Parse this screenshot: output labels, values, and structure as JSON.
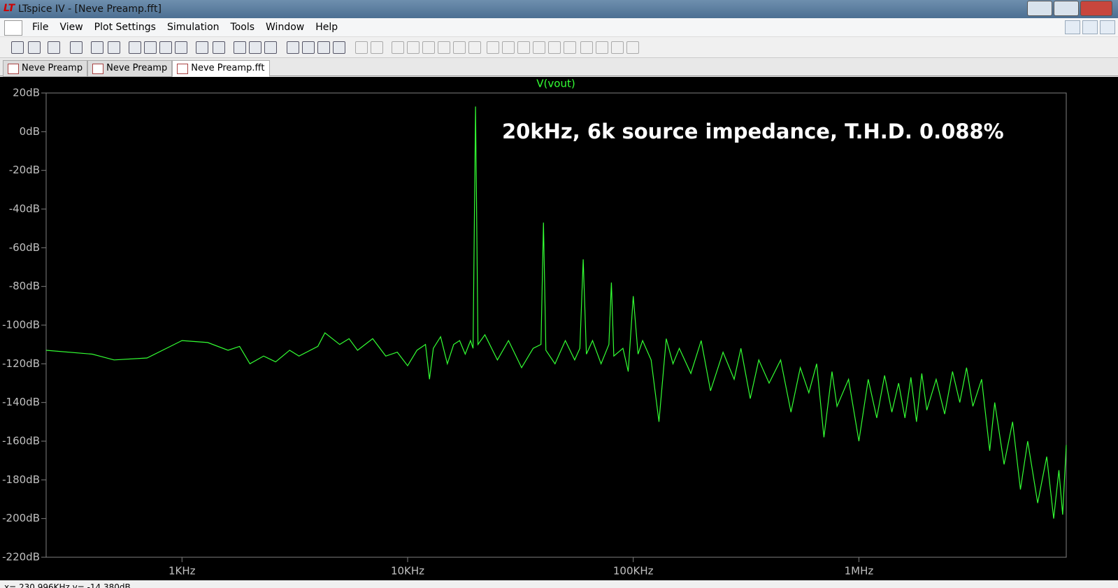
{
  "window": {
    "title": "LTspice IV - [Neve Preamp.fft]"
  },
  "menu": [
    "File",
    "View",
    "Plot Settings",
    "Simulation",
    "Tools",
    "Window",
    "Help"
  ],
  "tabs": [
    "Neve Preamp",
    "Neve Preamp",
    "Neve Preamp.fft"
  ],
  "status": "x= 230.996KHz  y= -14.380dB",
  "chart_data": {
    "type": "line",
    "annotation": "20kHz, 6k source impedance, T.H.D. 0.088%",
    "log_x": true,
    "x": [
      250,
      400,
      500,
      700,
      1000,
      1300,
      1600,
      1800,
      2000,
      2300,
      2600,
      3000,
      3300,
      4000,
      4300,
      5000,
      5500,
      6000,
      7000,
      8000,
      9000,
      10000,
      11000,
      12000,
      12500,
      13000,
      14000,
      15000,
      16000,
      17000,
      18000,
      19000,
      19500,
      20000,
      20500,
      22000,
      25000,
      28000,
      32000,
      36000,
      39000,
      40000,
      41000,
      45000,
      50000,
      55000,
      58000,
      60000,
      62000,
      66000,
      72000,
      78000,
      80000,
      82000,
      90000,
      95000,
      100000,
      105000,
      110000,
      120000,
      130000,
      140000,
      150000,
      160000,
      180000,
      200000,
      220000,
      250000,
      280000,
      300000,
      330000,
      360000,
      400000,
      450000,
      500000,
      550000,
      600000,
      650000,
      700000,
      760000,
      800000,
      900000,
      1000000,
      1100000,
      1200000,
      1300000,
      1400000,
      1500000,
      1600000,
      1700000,
      1800000,
      1900000,
      2000000,
      2200000,
      2400000,
      2600000,
      2800000,
      3000000,
      3200000,
      3500000,
      3800000,
      4000000,
      4400000,
      4800000,
      5200000,
      5600000,
      6200000,
      6800000,
      7300000,
      7700000,
      8000000,
      8300000
    ],
    "series": [
      {
        "name": "V(vout)",
        "color": "#33ff33",
        "values": [
          -113,
          -115,
          -118,
          -117,
          -108,
          -109,
          -113,
          -111,
          -120,
          -116,
          -119,
          -113,
          -116,
          -111,
          -104,
          -110,
          -107,
          -113,
          -107,
          -116,
          -114,
          -121,
          -113,
          -110,
          -128,
          -112,
          -106,
          -120,
          -110,
          -108,
          -115,
          -108,
          -112,
          13,
          -110,
          -105,
          -118,
          -108,
          -122,
          -112,
          -110,
          -47,
          -113,
          -120,
          -108,
          -118,
          -112,
          -66,
          -115,
          -108,
          -120,
          -110,
          -78,
          -116,
          -112,
          -124,
          -85,
          -115,
          -108,
          -118,
          -150,
          -107,
          -120,
          -112,
          -125,
          -108,
          -134,
          -114,
          -128,
          -112,
          -138,
          -118,
          -130,
          -118,
          -145,
          -122,
          -135,
          -120,
          -158,
          -124,
          -142,
          -128,
          -160,
          -128,
          -148,
          -126,
          -145,
          -130,
          -148,
          -127,
          -150,
          -125,
          -144,
          -128,
          -146,
          -124,
          -140,
          -122,
          -142,
          -128,
          -165,
          -140,
          -172,
          -150,
          -185,
          -160,
          -192,
          -168,
          -200,
          -175,
          -198,
          -162
        ]
      }
    ],
    "xlim": [
      250,
      8300000
    ],
    "ylim": [
      -220,
      20
    ],
    "xticks": [
      {
        "value": 1000,
        "label": "1KHz"
      },
      {
        "value": 10000,
        "label": "10KHz"
      },
      {
        "value": 100000,
        "label": "100KHz"
      },
      {
        "value": 1000000,
        "label": "1MHz"
      }
    ],
    "yticks": [
      {
        "value": 20,
        "label": "20dB"
      },
      {
        "value": 0,
        "label": "0dB"
      },
      {
        "value": -20,
        "label": "-20dB"
      },
      {
        "value": -40,
        "label": "-40dB"
      },
      {
        "value": -60,
        "label": "-60dB"
      },
      {
        "value": -80,
        "label": "-80dB"
      },
      {
        "value": -100,
        "label": "-100dB"
      },
      {
        "value": -120,
        "label": "-120dB"
      },
      {
        "value": -140,
        "label": "-140dB"
      },
      {
        "value": -160,
        "label": "-160dB"
      },
      {
        "value": -180,
        "label": "-180dB"
      },
      {
        "value": -200,
        "label": "-200dB"
      },
      {
        "value": -220,
        "label": "-220dB"
      }
    ],
    "grid": false
  }
}
